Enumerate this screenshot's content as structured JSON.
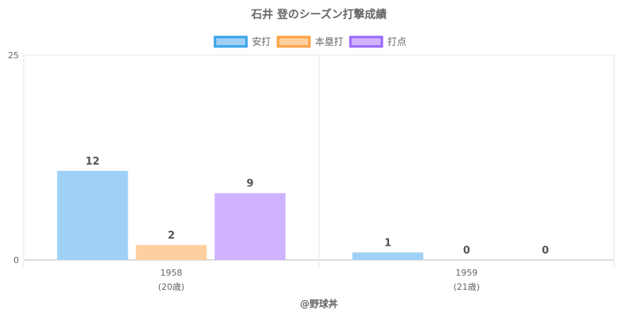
{
  "chart_data": {
    "type": "bar",
    "title": "石井 登のシーズン打撃成績",
    "categories": [
      "1958",
      "1959"
    ],
    "category_sublabels": [
      "(20歳)",
      "(21歳)"
    ],
    "series": [
      {
        "name": "安打",
        "values": [
          12,
          1
        ],
        "fill": "#9fd0f5",
        "stroke": "#36a2eb"
      },
      {
        "name": "本塁打",
        "values": [
          2,
          0
        ],
        "fill": "#ffcf9f",
        "stroke": "#ff9f40"
      },
      {
        "name": "打点",
        "values": [
          9,
          0
        ],
        "fill": "#cfb3ff",
        "stroke": "#9966ff"
      }
    ],
    "yticks": [
      "0",
      "25"
    ],
    "ylim": [
      0,
      27.6
    ],
    "legend": "top",
    "footer": "@野球丼"
  }
}
